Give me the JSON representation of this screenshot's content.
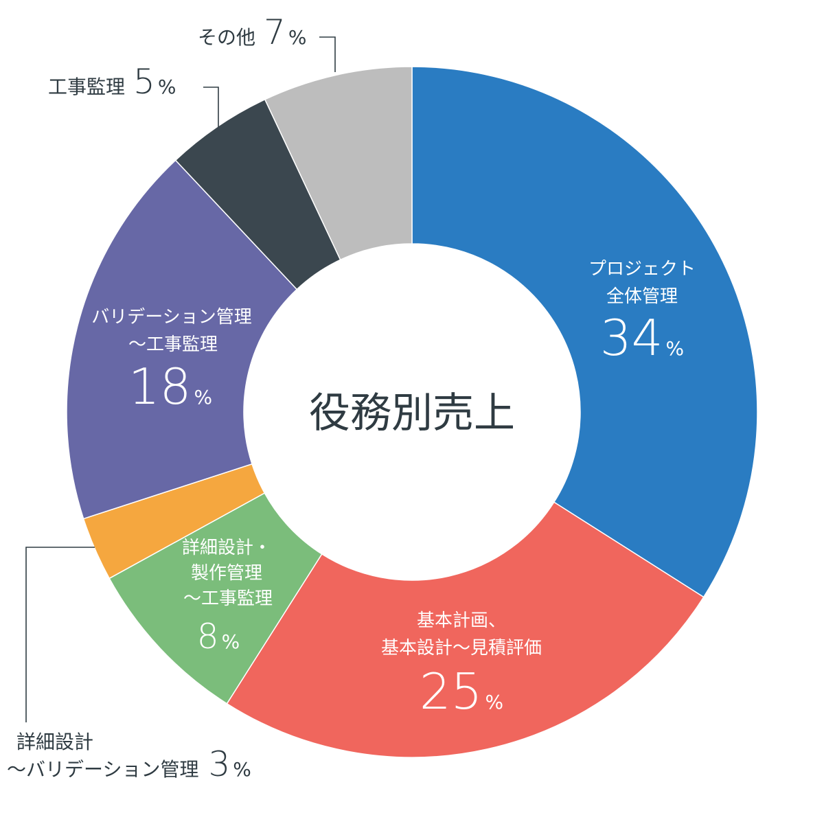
{
  "chart_data": {
    "type": "pie",
    "title": "役務別売上",
    "unit": "%",
    "categories": [
      "プロジェクト全体管理",
      "基本計画、基本設計〜見積評価",
      "詳細設計・製作管理〜工事監理",
      "詳細設計〜バリデーション管理",
      "バリデーション管理〜工事監理",
      "工事監理",
      "その他"
    ],
    "values": [
      34,
      25,
      8,
      3,
      18,
      5,
      7
    ],
    "colors": [
      "#2a7cc2",
      "#f0665d",
      "#7bbd7b",
      "#f5a73f",
      "#6768a6",
      "#3b474f",
      "#bdbdbd"
    ],
    "donut": true,
    "legend": "none",
    "labels": [
      {
        "lines": [
          "プロジェクト",
          "全体管理"
        ],
        "value": "34",
        "pct": "%"
      },
      {
        "lines": [
          "基本計画、",
          "基本設計〜見積評価"
        ],
        "value": "25",
        "pct": "%"
      },
      {
        "lines": [
          "詳細設計・",
          "製作管理",
          "〜工事監理"
        ],
        "value": "8",
        "pct": "%"
      },
      {
        "lines": [
          "詳細設計",
          "〜バリデーション管理"
        ],
        "value": "3",
        "pct": "%"
      },
      {
        "lines": [
          "バリデーション管理",
          "〜工事監理"
        ],
        "value": "18",
        "pct": "%"
      },
      {
        "lines": [
          "工事監理"
        ],
        "value": "5",
        "pct": "%"
      },
      {
        "lines": [
          "その他"
        ],
        "value": "7",
        "pct": "%"
      }
    ]
  }
}
